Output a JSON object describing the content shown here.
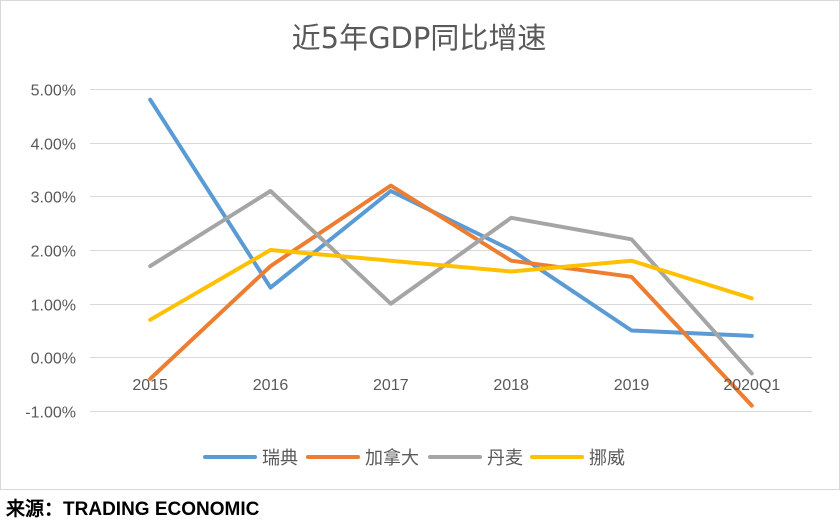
{
  "source": {
    "label": "来源：",
    "value": "TRADING ECONOMIC"
  },
  "chart_data": {
    "type": "line",
    "title": "近5年GDP同比增速",
    "xlabel": "",
    "ylabel": "",
    "categories": [
      "2015",
      "2016",
      "2017",
      "2018",
      "2019",
      "2020Q1"
    ],
    "ylim": [
      -1,
      5
    ],
    "yticks": [
      5,
      4,
      3,
      2,
      1,
      0,
      -1
    ],
    "ytick_labels": [
      "5.00%",
      "4.00%",
      "3.00%",
      "2.00%",
      "1.00%",
      "0.00%",
      "-1.00%"
    ],
    "grid": true,
    "legend_position": "bottom",
    "series": [
      {
        "name": "瑞典",
        "color": "#5b9bd5",
        "values": [
          4.8,
          1.3,
          3.1,
          2.0,
          0.5,
          0.4
        ]
      },
      {
        "name": "加拿大",
        "color": "#ed7d31",
        "values": [
          -0.4,
          1.7,
          3.2,
          1.8,
          1.5,
          -0.9
        ]
      },
      {
        "name": "丹麦",
        "color": "#a5a5a5",
        "values": [
          1.7,
          3.1,
          1.0,
          2.6,
          2.2,
          -0.3
        ]
      },
      {
        "name": "挪威",
        "color": "#ffc000",
        "values": [
          0.7,
          2.0,
          1.8,
          1.6,
          1.8,
          1.1
        ]
      }
    ]
  }
}
